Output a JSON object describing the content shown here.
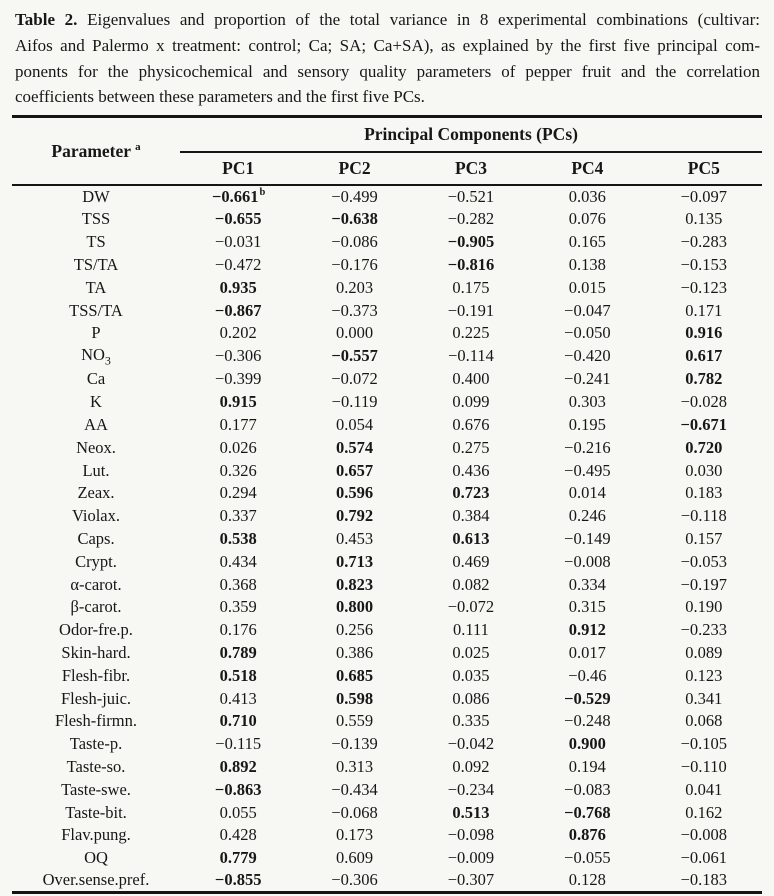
{
  "caption": {
    "lines": [
      {
        "bold": "Table 2.",
        "text": " Eigenvalues and proportion of the total variance in 8 experimental combinations (cultivar:"
      },
      {
        "bold": "",
        "text": "Aifos and Palermo x treatment: control; Ca; SA; Ca+SA), as explained by the first five principal com-"
      },
      {
        "bold": "",
        "text": "ponents for the physicochemical and sensory quality parameters of pepper fruit and the correlation"
      },
      {
        "bold": "",
        "text": "coefficients between these parameters and the first five PCs."
      }
    ]
  },
  "table": {
    "header": {
      "parameter_label": "Parameter",
      "parameter_sup": "a",
      "group_label": "Principal Components (PCs)",
      "pc_columns": [
        "PC1",
        "PC2",
        "PC3",
        "PC4",
        "PC5"
      ]
    },
    "rows": [
      {
        "label": "DW",
        "cells": [
          {
            "v": "−0.661",
            "bold": true,
            "sup": "b"
          },
          {
            "v": "−0.499"
          },
          {
            "v": "−0.521"
          },
          {
            "v": "0.036"
          },
          {
            "v": "−0.097"
          }
        ]
      },
      {
        "label": "TSS",
        "cells": [
          {
            "v": "−0.655",
            "bold": true
          },
          {
            "v": "−0.638",
            "bold": true
          },
          {
            "v": "−0.282"
          },
          {
            "v": "0.076"
          },
          {
            "v": "0.135"
          }
        ]
      },
      {
        "label": "TS",
        "cells": [
          {
            "v": "−0.031"
          },
          {
            "v": "−0.086"
          },
          {
            "v": "−0.905",
            "bold": true
          },
          {
            "v": "0.165"
          },
          {
            "v": "−0.283"
          }
        ]
      },
      {
        "label": "TS/TA",
        "cells": [
          {
            "v": "−0.472"
          },
          {
            "v": "−0.176"
          },
          {
            "v": "−0.816",
            "bold": true
          },
          {
            "v": "0.138"
          },
          {
            "v": "−0.153"
          }
        ]
      },
      {
        "label": "TA",
        "cells": [
          {
            "v": "0.935",
            "bold": true
          },
          {
            "v": "0.203"
          },
          {
            "v": "0.175"
          },
          {
            "v": "0.015"
          },
          {
            "v": "−0.123"
          }
        ]
      },
      {
        "label": "TSS/TA",
        "cells": [
          {
            "v": "−0.867",
            "bold": true
          },
          {
            "v": "−0.373"
          },
          {
            "v": "−0.191"
          },
          {
            "v": "−0.047"
          },
          {
            "v": "0.171"
          }
        ]
      },
      {
        "label": "P",
        "cells": [
          {
            "v": "0.202"
          },
          {
            "v": "0.000"
          },
          {
            "v": "0.225"
          },
          {
            "v": "−0.050"
          },
          {
            "v": "0.916",
            "bold": true
          }
        ]
      },
      {
        "label": "NO",
        "sub": "3",
        "cells": [
          {
            "v": "−0.306"
          },
          {
            "v": "−0.557",
            "bold": true
          },
          {
            "v": "−0.114"
          },
          {
            "v": "−0.420"
          },
          {
            "v": "0.617",
            "bold": true
          }
        ]
      },
      {
        "label": "Ca",
        "cells": [
          {
            "v": "−0.399"
          },
          {
            "v": "−0.072"
          },
          {
            "v": "0.400"
          },
          {
            "v": "−0.241"
          },
          {
            "v": "0.782",
            "bold": true
          }
        ]
      },
      {
        "label": "K",
        "cells": [
          {
            "v": "0.915",
            "bold": true
          },
          {
            "v": "−0.119"
          },
          {
            "v": "0.099"
          },
          {
            "v": "0.303"
          },
          {
            "v": "−0.028"
          }
        ]
      },
      {
        "label": "AA",
        "cells": [
          {
            "v": "0.177"
          },
          {
            "v": "0.054"
          },
          {
            "v": "0.676"
          },
          {
            "v": "0.195"
          },
          {
            "v": "−0.671",
            "bold": true
          }
        ]
      },
      {
        "label": "Neox.",
        "cells": [
          {
            "v": "0.026"
          },
          {
            "v": "0.574",
            "bold": true
          },
          {
            "v": "0.275"
          },
          {
            "v": "−0.216"
          },
          {
            "v": "0.720",
            "bold": true
          }
        ]
      },
      {
        "label": "Lut.",
        "cells": [
          {
            "v": "0.326"
          },
          {
            "v": "0.657",
            "bold": true
          },
          {
            "v": "0.436"
          },
          {
            "v": "−0.495"
          },
          {
            "v": "0.030"
          }
        ]
      },
      {
        "label": "Zeax.",
        "cells": [
          {
            "v": "0.294"
          },
          {
            "v": "0.596",
            "bold": true
          },
          {
            "v": "0.723",
            "bold": true
          },
          {
            "v": "0.014"
          },
          {
            "v": "0.183"
          }
        ]
      },
      {
        "label": "Violax.",
        "cells": [
          {
            "v": "0.337"
          },
          {
            "v": "0.792",
            "bold": true
          },
          {
            "v": "0.384"
          },
          {
            "v": "0.246"
          },
          {
            "v": "−0.118"
          }
        ]
      },
      {
        "label": "Caps.",
        "cells": [
          {
            "v": "0.538",
            "bold": true
          },
          {
            "v": "0.453"
          },
          {
            "v": "0.613",
            "bold": true
          },
          {
            "v": "−0.149"
          },
          {
            "v": "0.157"
          }
        ]
      },
      {
        "label": "Crypt.",
        "cells": [
          {
            "v": "0.434"
          },
          {
            "v": "0.713",
            "bold": true
          },
          {
            "v": "0.469"
          },
          {
            "v": "−0.008"
          },
          {
            "v": "−0.053"
          }
        ]
      },
      {
        "label": "α-carot.",
        "cells": [
          {
            "v": "0.368"
          },
          {
            "v": "0.823",
            "bold": true
          },
          {
            "v": "0.082"
          },
          {
            "v": "0.334"
          },
          {
            "v": "−0.197"
          }
        ]
      },
      {
        "label": "β-carot.",
        "cells": [
          {
            "v": "0.359"
          },
          {
            "v": "0.800",
            "bold": true
          },
          {
            "v": "−0.072"
          },
          {
            "v": "0.315"
          },
          {
            "v": "0.190"
          }
        ]
      },
      {
        "label": "Odor-fre.p.",
        "cells": [
          {
            "v": "0.176"
          },
          {
            "v": "0.256"
          },
          {
            "v": "0.111"
          },
          {
            "v": "0.912",
            "bold": true
          },
          {
            "v": "−0.233"
          }
        ]
      },
      {
        "label": "Skin-hard.",
        "cells": [
          {
            "v": "0.789",
            "bold": true
          },
          {
            "v": "0.386"
          },
          {
            "v": "0.025"
          },
          {
            "v": "0.017"
          },
          {
            "v": "0.089"
          }
        ]
      },
      {
        "label": "Flesh-fibr.",
        "cells": [
          {
            "v": "0.518",
            "bold": true
          },
          {
            "v": "0.685",
            "bold": true
          },
          {
            "v": "0.035"
          },
          {
            "v": "−0.46"
          },
          {
            "v": "0.123"
          }
        ]
      },
      {
        "label": "Flesh-juic.",
        "cells": [
          {
            "v": "0.413"
          },
          {
            "v": "0.598",
            "bold": true
          },
          {
            "v": "0.086"
          },
          {
            "v": "−0.529",
            "bold": true
          },
          {
            "v": "0.341"
          }
        ]
      },
      {
        "label": "Flesh-firmn.",
        "cells": [
          {
            "v": "0.710",
            "bold": true
          },
          {
            "v": "0.559"
          },
          {
            "v": "0.335"
          },
          {
            "v": "−0.248"
          },
          {
            "v": "0.068"
          }
        ]
      },
      {
        "label": "Taste-p.",
        "cells": [
          {
            "v": "−0.115"
          },
          {
            "v": "−0.139"
          },
          {
            "v": "−0.042"
          },
          {
            "v": "0.900",
            "bold": true
          },
          {
            "v": "−0.105"
          }
        ]
      },
      {
        "label": "Taste-so.",
        "cells": [
          {
            "v": "0.892",
            "bold": true
          },
          {
            "v": "0.313"
          },
          {
            "v": "0.092"
          },
          {
            "v": "0.194"
          },
          {
            "v": "−0.110"
          }
        ]
      },
      {
        "label": "Taste-swe.",
        "cells": [
          {
            "v": "−0.863",
            "bold": true
          },
          {
            "v": "−0.434"
          },
          {
            "v": "−0.234"
          },
          {
            "v": "−0.083"
          },
          {
            "v": "0.041"
          }
        ]
      },
      {
        "label": "Taste-bit.",
        "cells": [
          {
            "v": "0.055"
          },
          {
            "v": "−0.068"
          },
          {
            "v": "0.513",
            "bold": true
          },
          {
            "v": "−0.768",
            "bold": true
          },
          {
            "v": "0.162"
          }
        ]
      },
      {
        "label": "Flav.pung.",
        "cells": [
          {
            "v": "0.428"
          },
          {
            "v": "0.173"
          },
          {
            "v": "−0.098"
          },
          {
            "v": "0.876",
            "bold": true
          },
          {
            "v": "−0.008"
          }
        ]
      },
      {
        "label": "OQ",
        "cells": [
          {
            "v": "0.779",
            "bold": true
          },
          {
            "v": "0.609"
          },
          {
            "v": "−0.009"
          },
          {
            "v": "−0.055"
          },
          {
            "v": "−0.061"
          }
        ]
      },
      {
        "label": "Over.sense.pref.",
        "cells": [
          {
            "v": "−0.855",
            "bold": true
          },
          {
            "v": "−0.306"
          },
          {
            "v": "−0.307"
          },
          {
            "v": "0.128"
          },
          {
            "v": "−0.183"
          }
        ]
      }
    ]
  },
  "colors": {
    "text": "#171717",
    "background": "#f7f7f3",
    "rule": "#151515"
  }
}
